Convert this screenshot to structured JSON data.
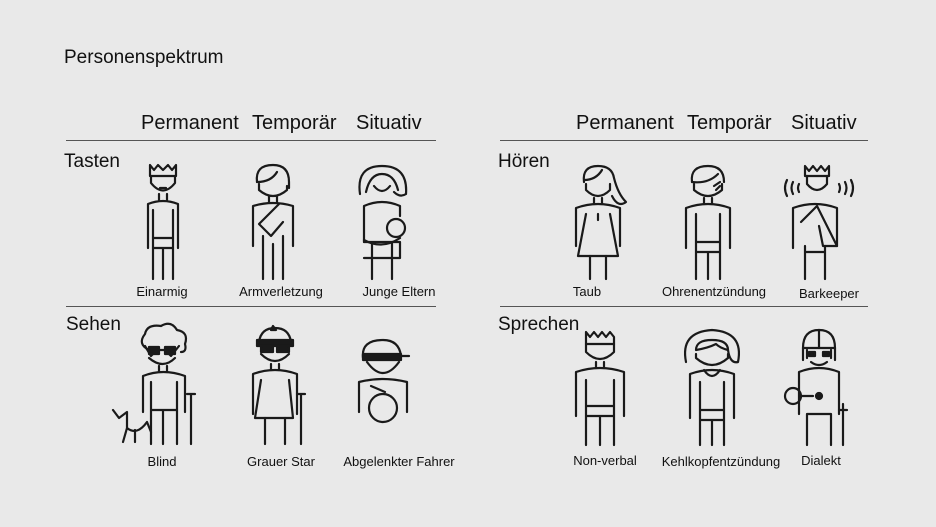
{
  "title": "Personenspektrum",
  "columns": [
    "Permanent",
    "Temporär",
    "Situativ"
  ],
  "left": {
    "rows": [
      {
        "label": "Tasten",
        "captions": [
          "Einarmig",
          "Armverletzung",
          "Junge Eltern"
        ]
      },
      {
        "label": "Sehen",
        "captions": [
          "Blind",
          "Grauer Star",
          "Abgelenkter Fahrer"
        ]
      }
    ]
  },
  "right": {
    "rows": [
      {
        "label": "Hören",
        "captions": [
          "Taub",
          "Ohrenentzündung",
          "Barkeeper"
        ]
      },
      {
        "label": "Sprechen",
        "captions": [
          "Non-verbal",
          "Kehlkopfentzündung",
          "Dialekt"
        ]
      }
    ]
  }
}
